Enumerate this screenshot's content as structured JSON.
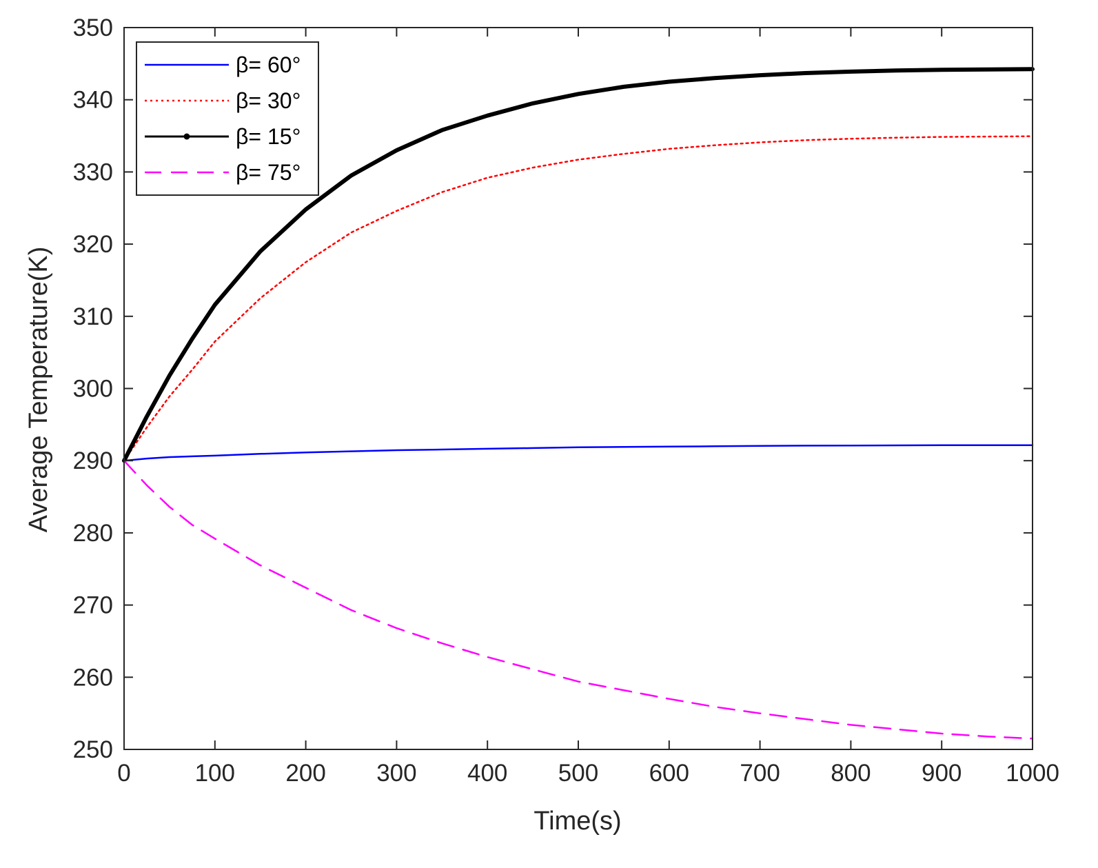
{
  "chart_data": {
    "type": "line",
    "title": "",
    "xlabel": "Time(s)",
    "ylabel": "Average Temperature(K)",
    "xlim": [
      0,
      1000
    ],
    "ylim": [
      250,
      350
    ],
    "xticks": [
      0,
      100,
      200,
      300,
      400,
      500,
      600,
      700,
      800,
      900,
      1000
    ],
    "yticks": [
      250,
      260,
      270,
      280,
      290,
      300,
      310,
      320,
      330,
      340,
      350
    ],
    "grid": false,
    "legend_position": "top-left",
    "x": [
      0,
      25,
      50,
      75,
      100,
      150,
      200,
      250,
      300,
      350,
      400,
      450,
      500,
      550,
      600,
      650,
      700,
      750,
      800,
      850,
      900,
      950,
      1000
    ],
    "series": [
      {
        "name": "β= 60°",
        "color": "#0000ff",
        "style": "solid",
        "values": [
          290.0,
          290.3,
          290.5,
          290.6,
          290.7,
          290.95,
          291.15,
          291.3,
          291.45,
          291.55,
          291.65,
          291.75,
          291.85,
          291.9,
          291.95,
          292.0,
          292.05,
          292.08,
          292.1,
          292.12,
          292.14,
          292.15,
          292.15
        ]
      },
      {
        "name": "β= 30°",
        "color": "#ff0000",
        "style": "dotted",
        "values": [
          290.0,
          294.6,
          298.9,
          302.6,
          306.5,
          312.5,
          317.5,
          321.6,
          324.6,
          327.2,
          329.2,
          330.6,
          331.7,
          332.5,
          333.2,
          333.7,
          334.1,
          334.4,
          334.6,
          334.75,
          334.85,
          334.9,
          334.95
        ]
      },
      {
        "name": "β= 15°",
        "color": "#000000",
        "style": "thick",
        "values": [
          290.0,
          296.1,
          301.8,
          306.9,
          311.6,
          319.0,
          324.8,
          329.5,
          333.0,
          335.8,
          337.8,
          339.5,
          340.8,
          341.8,
          342.5,
          343.0,
          343.4,
          343.7,
          343.9,
          344.05,
          344.15,
          344.2,
          344.25
        ]
      },
      {
        "name": "β= 75°",
        "color": "#ff00ff",
        "style": "dashed",
        "values": [
          290.0,
          286.6,
          283.6,
          281.1,
          279.2,
          275.5,
          272.4,
          269.3,
          266.8,
          264.7,
          262.8,
          261.1,
          259.4,
          258.2,
          257.0,
          255.9,
          255.0,
          254.2,
          253.4,
          252.8,
          252.2,
          251.8,
          251.5
        ]
      }
    ]
  }
}
